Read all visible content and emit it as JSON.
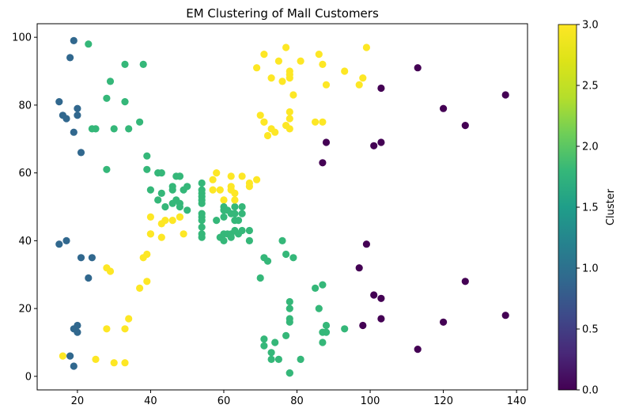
{
  "chart_data": {
    "type": "scatter",
    "title": "EM Clustering of Mall Customers",
    "xlabel": "",
    "ylabel": "",
    "xlim": [
      9,
      143
    ],
    "ylim": [
      -4,
      104
    ],
    "x_ticks": [
      20,
      40,
      60,
      80,
      100,
      120,
      140
    ],
    "y_ticks": [
      0,
      20,
      40,
      60,
      80,
      100
    ],
    "grid": false,
    "colorbar": {
      "label": "Cluster",
      "range": [
        0.0,
        3.0
      ],
      "ticks": [
        "0.0",
        "0.5",
        "1.0",
        "1.5",
        "2.0",
        "2.5",
        "3.0"
      ],
      "colormap": "viridis"
    },
    "colors": {
      "cluster_0": "#440154",
      "cluster_1": "#31688e",
      "cluster_2": "#35b779",
      "cluster_3": "#fde725"
    },
    "points": [
      [
        15,
        39,
        1
      ],
      [
        15,
        81,
        1
      ],
      [
        16,
        6,
        3
      ],
      [
        16,
        77,
        1
      ],
      [
        17,
        40,
        1
      ],
      [
        17,
        76,
        1
      ],
      [
        18,
        6,
        1
      ],
      [
        18,
        94,
        1
      ],
      [
        19,
        3,
        1
      ],
      [
        19,
        72,
        1
      ],
      [
        19,
        14,
        1
      ],
      [
        19,
        99,
        1
      ],
      [
        20,
        15,
        1
      ],
      [
        20,
        77,
        1
      ],
      [
        20,
        13,
        1
      ],
      [
        20,
        79,
        1
      ],
      [
        21,
        35,
        1
      ],
      [
        21,
        66,
        1
      ],
      [
        23,
        29,
        1
      ],
      [
        23,
        98,
        2
      ],
      [
        24,
        35,
        1
      ],
      [
        24,
        73,
        2
      ],
      [
        25,
        5,
        3
      ],
      [
        25,
        73,
        2
      ],
      [
        28,
        14,
        3
      ],
      [
        28,
        82,
        2
      ],
      [
        28,
        32,
        3
      ],
      [
        28,
        61,
        2
      ],
      [
        29,
        31,
        3
      ],
      [
        29,
        87,
        2
      ],
      [
        30,
        4,
        3
      ],
      [
        30,
        73,
        2
      ],
      [
        33,
        4,
        3
      ],
      [
        33,
        92,
        2
      ],
      [
        33,
        14,
        3
      ],
      [
        33,
        81,
        2
      ],
      [
        34,
        17,
        3
      ],
      [
        34,
        73,
        2
      ],
      [
        37,
        26,
        3
      ],
      [
        37,
        75,
        2
      ],
      [
        38,
        35,
        3
      ],
      [
        38,
        92,
        2
      ],
      [
        39,
        36,
        3
      ],
      [
        39,
        61,
        2
      ],
      [
        39,
        28,
        3
      ],
      [
        39,
        65,
        2
      ],
      [
        40,
        55,
        2
      ],
      [
        40,
        47,
        3
      ],
      [
        40,
        42,
        3
      ],
      [
        40,
        42,
        3
      ],
      [
        42,
        52,
        2
      ],
      [
        42,
        60,
        2
      ],
      [
        43,
        54,
        2
      ],
      [
        43,
        60,
        2
      ],
      [
        43,
        45,
        3
      ],
      [
        43,
        41,
        3
      ],
      [
        44,
        50,
        2
      ],
      [
        44,
        46,
        3
      ],
      [
        46,
        51,
        2
      ],
      [
        46,
        46,
        3
      ],
      [
        46,
        56,
        2
      ],
      [
        46,
        55,
        2
      ],
      [
        47,
        52,
        2
      ],
      [
        47,
        59,
        2
      ],
      [
        48,
        51,
        2
      ],
      [
        48,
        59,
        2
      ],
      [
        48,
        50,
        2
      ],
      [
        48,
        47,
        3
      ],
      [
        48,
        59,
        2
      ],
      [
        48,
        47,
        3
      ],
      [
        49,
        55,
        2
      ],
      [
        49,
        42,
        3
      ],
      [
        50,
        49,
        2
      ],
      [
        50,
        56,
        2
      ],
      [
        54,
        47,
        2
      ],
      [
        54,
        54,
        2
      ],
      [
        54,
        53,
        2
      ],
      [
        54,
        48,
        2
      ],
      [
        54,
        52,
        2
      ],
      [
        54,
        42,
        2
      ],
      [
        54,
        51,
        2
      ],
      [
        54,
        55,
        2
      ],
      [
        54,
        41,
        2
      ],
      [
        54,
        44,
        2
      ],
      [
        54,
        57,
        2
      ],
      [
        54,
        46,
        2
      ],
      [
        57,
        58,
        3
      ],
      [
        57,
        55,
        3
      ],
      [
        58,
        60,
        3
      ],
      [
        58,
        46,
        2
      ],
      [
        59,
        55,
        3
      ],
      [
        59,
        41,
        2
      ],
      [
        60,
        49,
        2
      ],
      [
        60,
        40,
        2
      ],
      [
        60,
        42,
        2
      ],
      [
        60,
        52,
        3
      ],
      [
        60,
        47,
        2
      ],
      [
        60,
        50,
        2
      ],
      [
        61,
        42,
        2
      ],
      [
        61,
        49,
        2
      ],
      [
        62,
        41,
        2
      ],
      [
        62,
        48,
        2
      ],
      [
        62,
        59,
        3
      ],
      [
        62,
        55,
        3
      ],
      [
        62,
        56,
        3
      ],
      [
        62,
        42,
        2
      ],
      [
        63,
        50,
        2
      ],
      [
        63,
        46,
        2
      ],
      [
        63,
        43,
        2
      ],
      [
        63,
        48,
        2
      ],
      [
        63,
        52,
        3
      ],
      [
        63,
        54,
        3
      ],
      [
        64,
        42,
        2
      ],
      [
        64,
        46,
        2
      ],
      [
        65,
        48,
        2
      ],
      [
        65,
        50,
        2
      ],
      [
        65,
        43,
        2
      ],
      [
        65,
        59,
        3
      ],
      [
        67,
        43,
        2
      ],
      [
        67,
        57,
        3
      ],
      [
        67,
        56,
        3
      ],
      [
        67,
        40,
        2
      ],
      [
        69,
        58,
        3
      ],
      [
        69,
        91,
        3
      ],
      [
        70,
        29,
        2
      ],
      [
        70,
        77,
        3
      ],
      [
        71,
        35,
        2
      ],
      [
        71,
        95,
        3
      ],
      [
        71,
        11,
        2
      ],
      [
        71,
        75,
        3
      ],
      [
        71,
        9,
        2
      ],
      [
        71,
        75,
        3
      ],
      [
        72,
        34,
        2
      ],
      [
        72,
        71,
        3
      ],
      [
        73,
        5,
        2
      ],
      [
        73,
        88,
        3
      ],
      [
        73,
        7,
        2
      ],
      [
        73,
        73,
        3
      ],
      [
        74,
        10,
        2
      ],
      [
        74,
        72,
        3
      ],
      [
        75,
        5,
        2
      ],
      [
        75,
        93,
        3
      ],
      [
        76,
        40,
        2
      ],
      [
        76,
        87,
        3
      ],
      [
        77,
        12,
        2
      ],
      [
        77,
        97,
        3
      ],
      [
        77,
        36,
        2
      ],
      [
        77,
        74,
        3
      ],
      [
        78,
        22,
        2
      ],
      [
        78,
        90,
        3
      ],
      [
        78,
        17,
        2
      ],
      [
        78,
        88,
        3
      ],
      [
        78,
        20,
        2
      ],
      [
        78,
        76,
        3
      ],
      [
        78,
        16,
        2
      ],
      [
        78,
        89,
        3
      ],
      [
        78,
        1,
        2
      ],
      [
        78,
        78,
        3
      ],
      [
        78,
        1,
        2
      ],
      [
        78,
        73,
        3
      ],
      [
        79,
        35,
        2
      ],
      [
        79,
        83,
        3
      ],
      [
        81,
        5,
        2
      ],
      [
        81,
        93,
        3
      ],
      [
        85,
        26,
        2
      ],
      [
        85,
        75,
        3
      ],
      [
        86,
        20,
        2
      ],
      [
        86,
        95,
        3
      ],
      [
        87,
        27,
        2
      ],
      [
        87,
        63,
        0
      ],
      [
        87,
        13,
        2
      ],
      [
        87,
        75,
        3
      ],
      [
        87,
        10,
        2
      ],
      [
        87,
        92,
        3
      ],
      [
        88,
        13,
        2
      ],
      [
        88,
        86,
        3
      ],
      [
        88,
        15,
        2
      ],
      [
        88,
        69,
        0
      ],
      [
        93,
        14,
        2
      ],
      [
        93,
        90,
        3
      ],
      [
        97,
        32,
        0
      ],
      [
        97,
        86,
        3
      ],
      [
        98,
        15,
        0
      ],
      [
        98,
        88,
        3
      ],
      [
        99,
        39,
        0
      ],
      [
        99,
        97,
        3
      ],
      [
        101,
        24,
        0
      ],
      [
        101,
        68,
        0
      ],
      [
        103,
        17,
        0
      ],
      [
        103,
        85,
        0
      ],
      [
        103,
        23,
        0
      ],
      [
        103,
        69,
        0
      ],
      [
        113,
        8,
        0
      ],
      [
        113,
        91,
        0
      ],
      [
        120,
        16,
        0
      ],
      [
        120,
        79,
        0
      ],
      [
        126,
        28,
        0
      ],
      [
        126,
        74,
        0
      ],
      [
        137,
        18,
        0
      ],
      [
        137,
        83,
        0
      ]
    ]
  }
}
